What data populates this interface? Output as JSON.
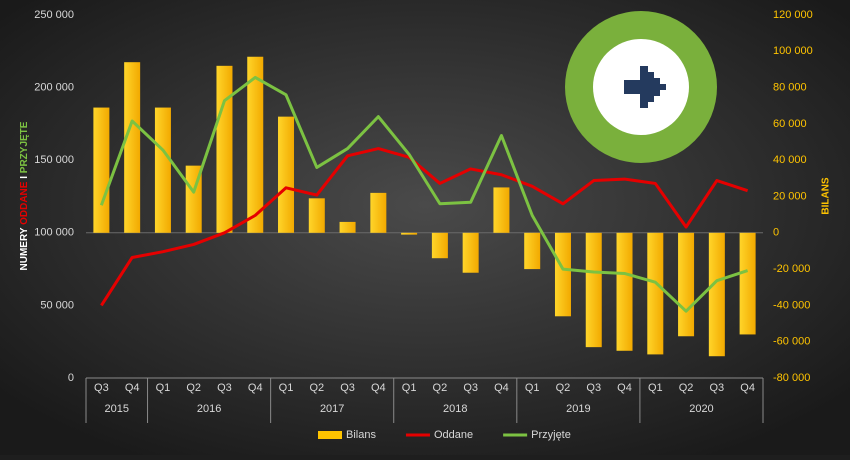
{
  "chart_data": {
    "type": "bar-line",
    "ylabel": [
      "NUMERY",
      "ODDANE",
      "I",
      "PRZYJĘTE"
    ],
    "y2label": "BILANS",
    "groups": [
      {
        "label": "2015",
        "categories": [
          "Q3",
          "Q4"
        ]
      },
      {
        "label": "2016",
        "categories": [
          "Q1",
          "Q2",
          "Q3",
          "Q4"
        ]
      },
      {
        "label": "2017",
        "categories": [
          "Q1",
          "Q2",
          "Q3",
          "Q4"
        ]
      },
      {
        "label": "2018",
        "categories": [
          "Q1",
          "Q2",
          "Q3",
          "Q4"
        ]
      },
      {
        "label": "2019",
        "categories": [
          "Q1",
          "Q2",
          "Q3",
          "Q4"
        ]
      },
      {
        "label": "2020",
        "categories": [
          "Q1",
          "Q2",
          "Q3",
          "Q4"
        ]
      }
    ],
    "series": [
      {
        "name": "Bilans",
        "type": "bar",
        "axis": "y2",
        "color": "#ffc400",
        "values": [
          69000,
          94000,
          69000,
          37000,
          92000,
          97000,
          64000,
          19000,
          6000,
          22000,
          -1000,
          -14000,
          -22000,
          25000,
          -20000,
          -46000,
          -63000,
          -65000,
          -67000,
          -57000,
          -68000,
          -56000
        ]
      },
      {
        "name": "Oddane",
        "type": "line",
        "color": "#e50000",
        "values": [
          50000,
          83000,
          87000,
          92000,
          100000,
          112000,
          131000,
          126000,
          153000,
          158000,
          152000,
          134000,
          144000,
          140000,
          132000,
          120000,
          136000,
          137000,
          134000,
          104000,
          136000,
          129000
        ]
      },
      {
        "name": "Przyjęte",
        "type": "line",
        "color": "#7cc242",
        "values": [
          119000,
          177000,
          157000,
          128000,
          191000,
          207000,
          195000,
          145000,
          158000,
          180000,
          154000,
          120000,
          121000,
          167000,
          112000,
          75000,
          73000,
          72000,
          66000,
          46000,
          67000,
          74000
        ]
      }
    ],
    "ylim": [
      0,
      250000
    ],
    "yticks": [
      {
        "value": 0,
        "label": "0"
      },
      {
        "value": 50000,
        "label": "50 000"
      },
      {
        "value": 100000,
        "label": "100 000"
      },
      {
        "value": 150000,
        "label": "150 000"
      },
      {
        "value": 200000,
        "label": "200 000"
      },
      {
        "value": 250000,
        "label": "250 000"
      }
    ],
    "y2lim": [
      -80000,
      120000
    ],
    "y2ticks": [
      {
        "value": -80000,
        "label": "-80 000"
      },
      {
        "value": -60000,
        "label": "-60 000"
      },
      {
        "value": -40000,
        "label": "-40 000"
      },
      {
        "value": -20000,
        "label": "-20 000"
      },
      {
        "value": 0,
        "label": "0"
      },
      {
        "value": 20000,
        "label": "20 000"
      },
      {
        "value": 40000,
        "label": "40 000"
      },
      {
        "value": 60000,
        "label": "60 000"
      },
      {
        "value": 80000,
        "label": "80 000"
      },
      {
        "value": 100000,
        "label": "100 000"
      },
      {
        "value": 120000,
        "label": "120 000"
      }
    ],
    "grid": false,
    "legend": "bottom"
  }
}
